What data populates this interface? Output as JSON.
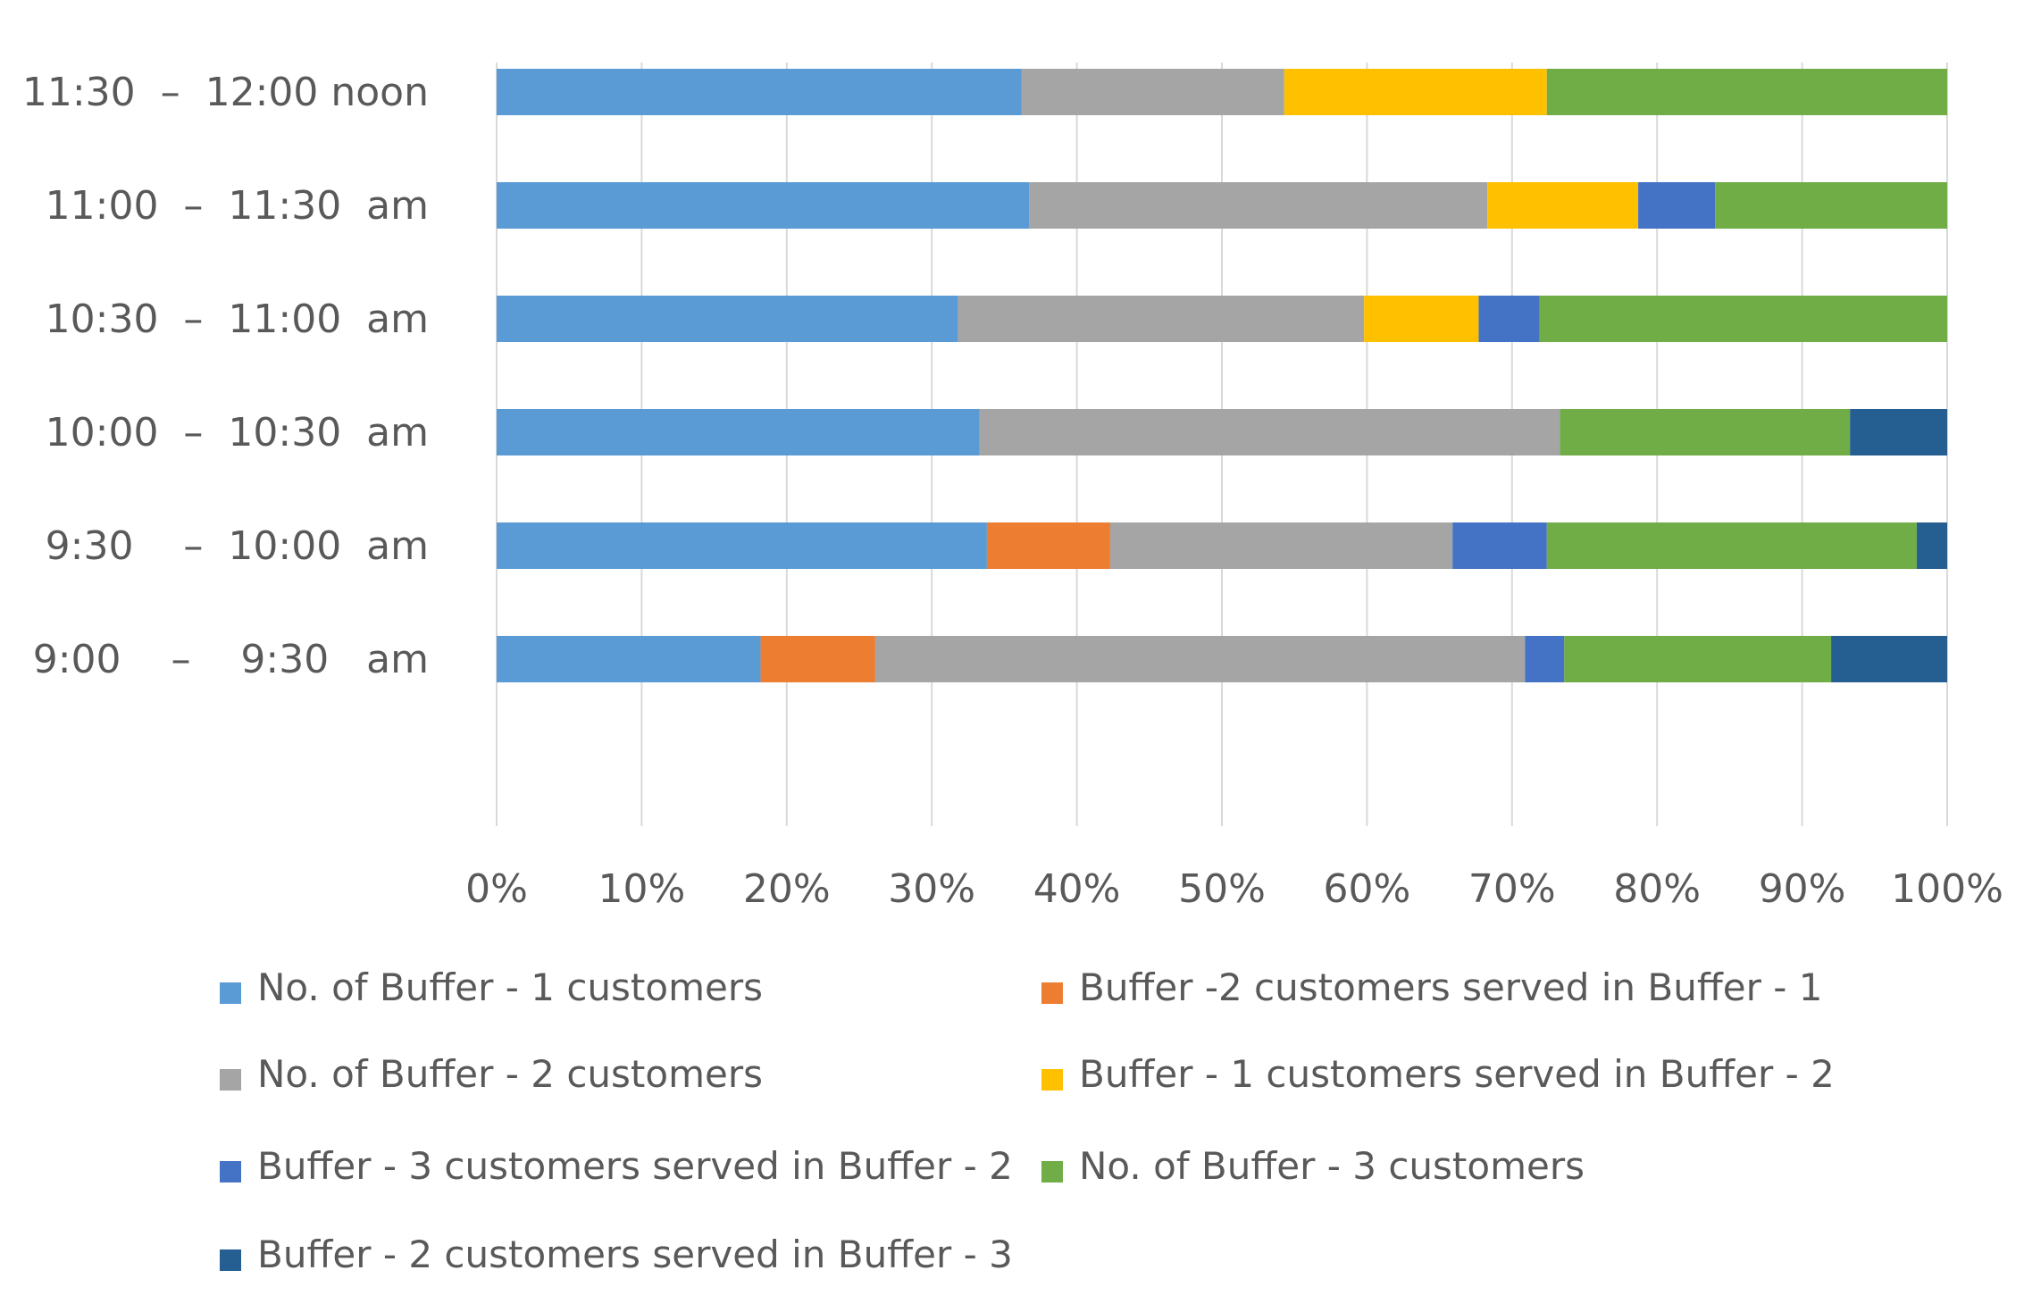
{
  "chart_data": {
    "type": "bar",
    "orientation": "horizontal",
    "stacked": "percent",
    "title": "",
    "xlabel": "",
    "ylabel": "",
    "xlim": [
      0,
      100
    ],
    "grid": true,
    "legend_position": "bottom",
    "categories": [
      "11:30  –  12:00 noon",
      "11:00  –  11:30  am",
      "10:30  –  11:00  am",
      "10:00  –  10:30  am",
      "9:30    –  10:00  am",
      "9:00    –    9:30   am"
    ],
    "x_ticks": [
      "0%",
      "10%",
      "20%",
      "30%",
      "40%",
      "50%",
      "60%",
      "70%",
      "80%",
      "90%",
      "100%"
    ],
    "series": [
      {
        "name": "No. of Buffer - 1 customers",
        "color": "#5b9bd5",
        "values": [
          36.2,
          36.7,
          31.8,
          33.3,
          33.8,
          18.2
        ]
      },
      {
        "name": "Buffer -2 customers served in Buffer - 1",
        "color": "#ed7d31",
        "values": [
          0,
          0,
          0,
          0,
          8.5,
          7.9
        ]
      },
      {
        "name": "No. of Buffer - 2 customers",
        "color": "#a5a5a5",
        "values": [
          18.1,
          31.6,
          28.0,
          40.0,
          23.6,
          44.8
        ]
      },
      {
        "name": "Buffer - 1 customers served in Buffer - 2",
        "color": "#ffc000",
        "values": [
          18.1,
          10.4,
          7.9,
          0,
          0,
          0
        ]
      },
      {
        "name": "Buffer - 3 customers served in Buffer - 2",
        "color": "#4472c4",
        "values": [
          0,
          5.3,
          4.2,
          0,
          6.5,
          2.7
        ]
      },
      {
        "name": "No. of Buffer - 3 customers",
        "color": "#70ad47",
        "values": [
          27.6,
          16.0,
          28.1,
          20.0,
          25.5,
          18.4
        ]
      },
      {
        "name": "Buffer - 2 customers served in Buffer - 3",
        "color": "#255e91",
        "values": [
          0,
          0,
          0,
          6.7,
          2.1,
          8.0
        ]
      }
    ]
  }
}
